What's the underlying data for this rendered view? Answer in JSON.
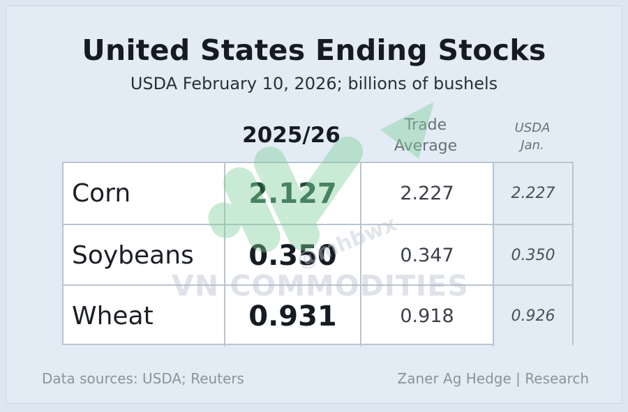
{
  "header": {
    "title": "United States Ending Stocks",
    "subtitle": "USDA February 10, 2026; billions of bushels"
  },
  "columns": {
    "main": "2025/26",
    "trade_line1": "Trade",
    "trade_line2": "Average",
    "jan_line1": "USDA",
    "jan_line2": "Jan."
  },
  "rows": [
    {
      "name": "Corn",
      "main": "2.127",
      "trade": "2.227",
      "jan": "2.227"
    },
    {
      "name": "Soybeans",
      "main": "0.350",
      "trade": "0.347",
      "jan": "0.350"
    },
    {
      "name": "Wheat",
      "main": "0.931",
      "trade": "0.918",
      "jan": "0.926"
    }
  ],
  "watermark": {
    "text": "VN COMMODITIES",
    "handle": "@mhbwx"
  },
  "footer": {
    "sources": "Data sources: USDA; Reuters",
    "credit": "Zaner Ag Hedge | Research"
  },
  "colors": {
    "background": "#e3ecf5",
    "accent_green": "#1f4d36",
    "grid": "#b8c4d0",
    "watermark_green": "#7fcf9a"
  }
}
